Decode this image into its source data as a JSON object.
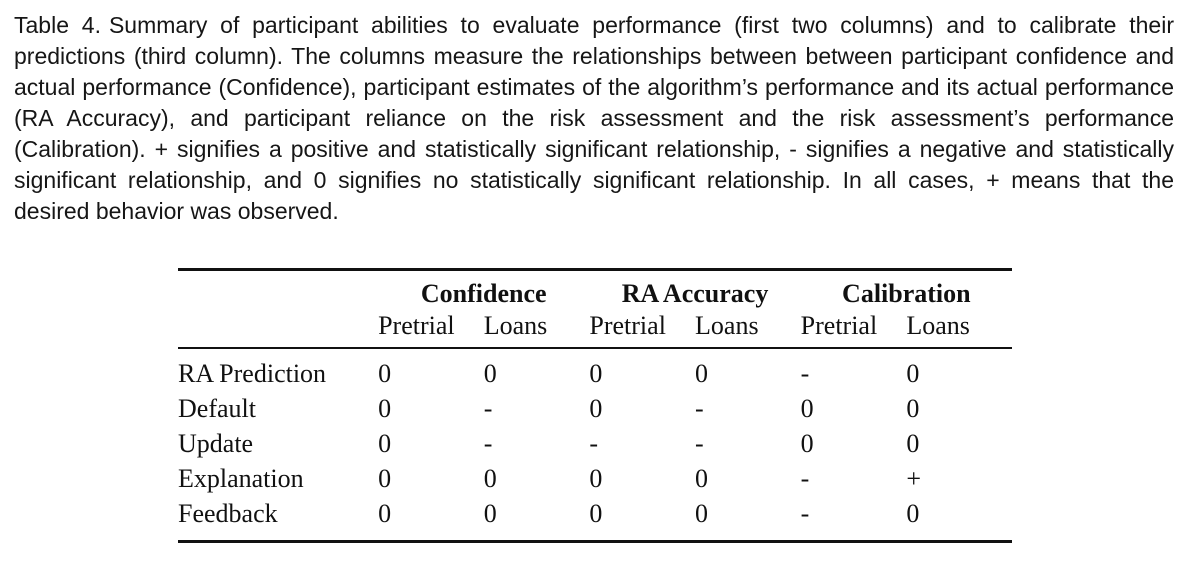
{
  "caption": {
    "label": "Table 4.",
    "text": "Summary of participant abilities to evaluate performance (first two columns) and to calibrate their predictions (third column). The columns measure the relationships between between participant confidence and actual performance (Confidence), participant estimates of the algorithm’s performance and its actual performance (RA Accuracy), and participant reliance on the risk assessment and the risk assessment’s performance (Calibration). + signifies a positive and statistically significant relationship, - signifies a negative and statistically significant relationship, and 0 signifies no statistically significant relationship. In all cases, + means that the desired behavior was observed."
  },
  "table": {
    "group_headers": [
      "Confidence",
      "RA Accuracy",
      "Calibration"
    ],
    "sub_headers": [
      "Pretrial",
      "Loans",
      "Pretrial",
      "Loans",
      "Pretrial",
      "Loans"
    ],
    "rows": [
      {
        "label": "RA Prediction",
        "values": [
          "0",
          "0",
          "0",
          "0",
          "-",
          "0"
        ]
      },
      {
        "label": "Default",
        "values": [
          "0",
          "-",
          "0",
          "-",
          "0",
          "0"
        ]
      },
      {
        "label": "Update",
        "values": [
          "0",
          "-",
          "-",
          "-",
          "0",
          "0"
        ]
      },
      {
        "label": "Explanation",
        "values": [
          "0",
          "0",
          "0",
          "0",
          "-",
          "+"
        ]
      },
      {
        "label": "Feedback",
        "values": [
          "0",
          "0",
          "0",
          "0",
          "-",
          "0"
        ]
      }
    ]
  },
  "colors": {
    "text": "#141414",
    "background": "#ffffff",
    "rule": "#111111"
  }
}
